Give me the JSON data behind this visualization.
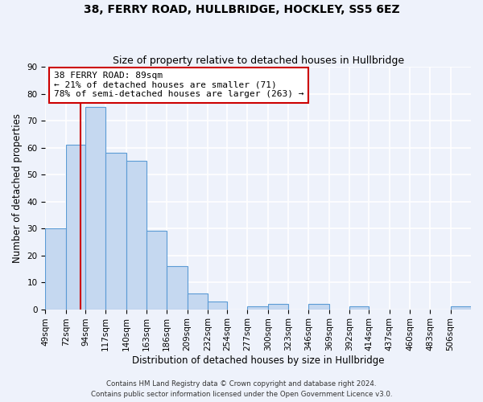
{
  "title": "38, FERRY ROAD, HULLBRIDGE, HOCKLEY, SS5 6EZ",
  "subtitle": "Size of property relative to detached houses in Hullbridge",
  "xlabel": "Distribution of detached houses by size in Hullbridge",
  "ylabel": "Number of detached properties",
  "bar_values": [
    30,
    61,
    75,
    58,
    55,
    29,
    16,
    6,
    3,
    0,
    1,
    2,
    0,
    2,
    0,
    1,
    0,
    0,
    0,
    0,
    1
  ],
  "bin_labels": [
    "49sqm",
    "72sqm",
    "94sqm",
    "117sqm",
    "140sqm",
    "163sqm",
    "186sqm",
    "209sqm",
    "232sqm",
    "254sqm",
    "277sqm",
    "300sqm",
    "323sqm",
    "346sqm",
    "369sqm",
    "392sqm",
    "414sqm",
    "437sqm",
    "460sqm",
    "483sqm",
    "506sqm"
  ],
  "bin_edges": [
    49,
    72,
    94,
    117,
    140,
    163,
    186,
    209,
    232,
    254,
    277,
    300,
    323,
    346,
    369,
    392,
    414,
    437,
    460,
    483,
    506,
    529
  ],
  "bar_color": "#c5d8f0",
  "bar_edge_color": "#5b9bd5",
  "property_value": 89,
  "red_line_color": "#cc0000",
  "ylim": [
    0,
    90
  ],
  "yticks": [
    0,
    10,
    20,
    30,
    40,
    50,
    60,
    70,
    80,
    90
  ],
  "annotation_line1": "38 FERRY ROAD: 89sqm",
  "annotation_line2": "← 21% of detached houses are smaller (71)",
  "annotation_line3": "78% of semi-detached houses are larger (263) →",
  "annotation_box_color": "#ffffff",
  "annotation_box_edge_color": "#cc0000",
  "footer_line1": "Contains HM Land Registry data © Crown copyright and database right 2024.",
  "footer_line2": "Contains public sector information licensed under the Open Government Licence v3.0.",
  "bg_color": "#eef2fb",
  "grid_color": "#ffffff",
  "title_fontsize": 10,
  "subtitle_fontsize": 9,
  "axis_label_fontsize": 8.5,
  "tick_fontsize": 7.5,
  "annotation_fontsize": 8
}
